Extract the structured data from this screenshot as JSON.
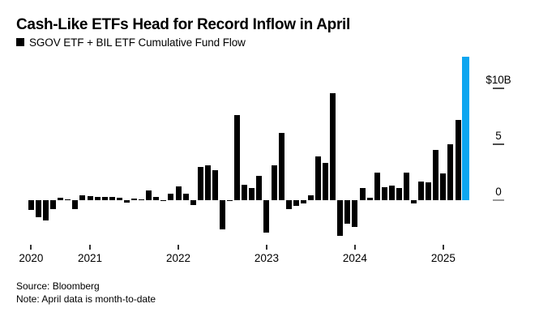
{
  "title": "Cash-Like ETFs Head for Record Inflow in April",
  "legend": {
    "label": "SGOV ETF + BIL ETF Cumulative Fund Flow",
    "swatch_color": "#000000"
  },
  "y_axis": {
    "labels": [
      "$10B",
      "5",
      "0"
    ],
    "values": [
      10,
      5,
      0
    ]
  },
  "x_axis": {
    "labels": [
      "2020",
      "2021",
      "2022",
      "2023",
      "2024",
      "2025"
    ],
    "tick_indices": [
      0,
      8,
      20,
      32,
      44,
      56
    ]
  },
  "footer": {
    "source": "Source: Bloomberg",
    "note": "Note: April data is month-to-date"
  },
  "colors": {
    "bar": "#000000",
    "highlight": "#0da6f0"
  },
  "chart_data": {
    "type": "bar",
    "title": "Cash-Like ETFs Head for Record Inflow in April",
    "series_label": "SGOV ETF + BIL ETF Cumulative Fund Flow",
    "unit": "USD billions, monthly fund flow",
    "x": [
      "2020-05",
      "2020-06",
      "2020-07",
      "2020-08",
      "2020-09",
      "2020-10",
      "2020-11",
      "2020-12",
      "2021-01",
      "2021-02",
      "2021-03",
      "2021-04",
      "2021-05",
      "2021-06",
      "2021-07",
      "2021-08",
      "2021-09",
      "2021-10",
      "2021-11",
      "2021-12",
      "2022-01",
      "2022-02",
      "2022-03",
      "2022-04",
      "2022-05",
      "2022-06",
      "2022-07",
      "2022-08",
      "2022-09",
      "2022-10",
      "2022-11",
      "2022-12",
      "2023-01",
      "2023-02",
      "2023-03",
      "2023-04",
      "2023-05",
      "2023-06",
      "2023-07",
      "2023-08",
      "2023-09",
      "2023-10",
      "2023-11",
      "2023-12",
      "2024-01",
      "2024-02",
      "2024-03",
      "2024-04",
      "2024-05",
      "2024-06",
      "2024-07",
      "2024-08",
      "2024-09",
      "2024-10",
      "2024-11",
      "2024-12",
      "2025-01",
      "2025-02",
      "2025-03",
      "2025-04"
    ],
    "values": [
      -0.9,
      -1.5,
      -1.8,
      -0.8,
      0.2,
      0.1,
      -0.8,
      0.4,
      0.35,
      0.3,
      0.3,
      0.3,
      0.2,
      -0.25,
      0.15,
      0.1,
      0.85,
      0.3,
      -0.05,
      0.55,
      1.2,
      0.55,
      -0.4,
      3.0,
      3.1,
      2.7,
      -2.6,
      -0.1,
      7.6,
      1.35,
      1.1,
      2.2,
      -2.9,
      3.1,
      6.0,
      -0.8,
      -0.5,
      -0.3,
      0.4,
      3.9,
      3.3,
      9.6,
      -3.2,
      -2.1,
      -2.4,
      1.1,
      0.25,
      2.5,
      1.15,
      1.3,
      1.1,
      2.45,
      -0.3,
      1.7,
      1.6,
      4.5,
      2.4,
      5.0,
      7.2,
      12.8
    ],
    "highlight_index": 59,
    "highlight_label": "April 2025 (month-to-date)",
    "ylim": [
      -4,
      13
    ],
    "yticks": [
      0,
      5,
      10
    ],
    "grid": false,
    "legend_position": "top-left"
  }
}
